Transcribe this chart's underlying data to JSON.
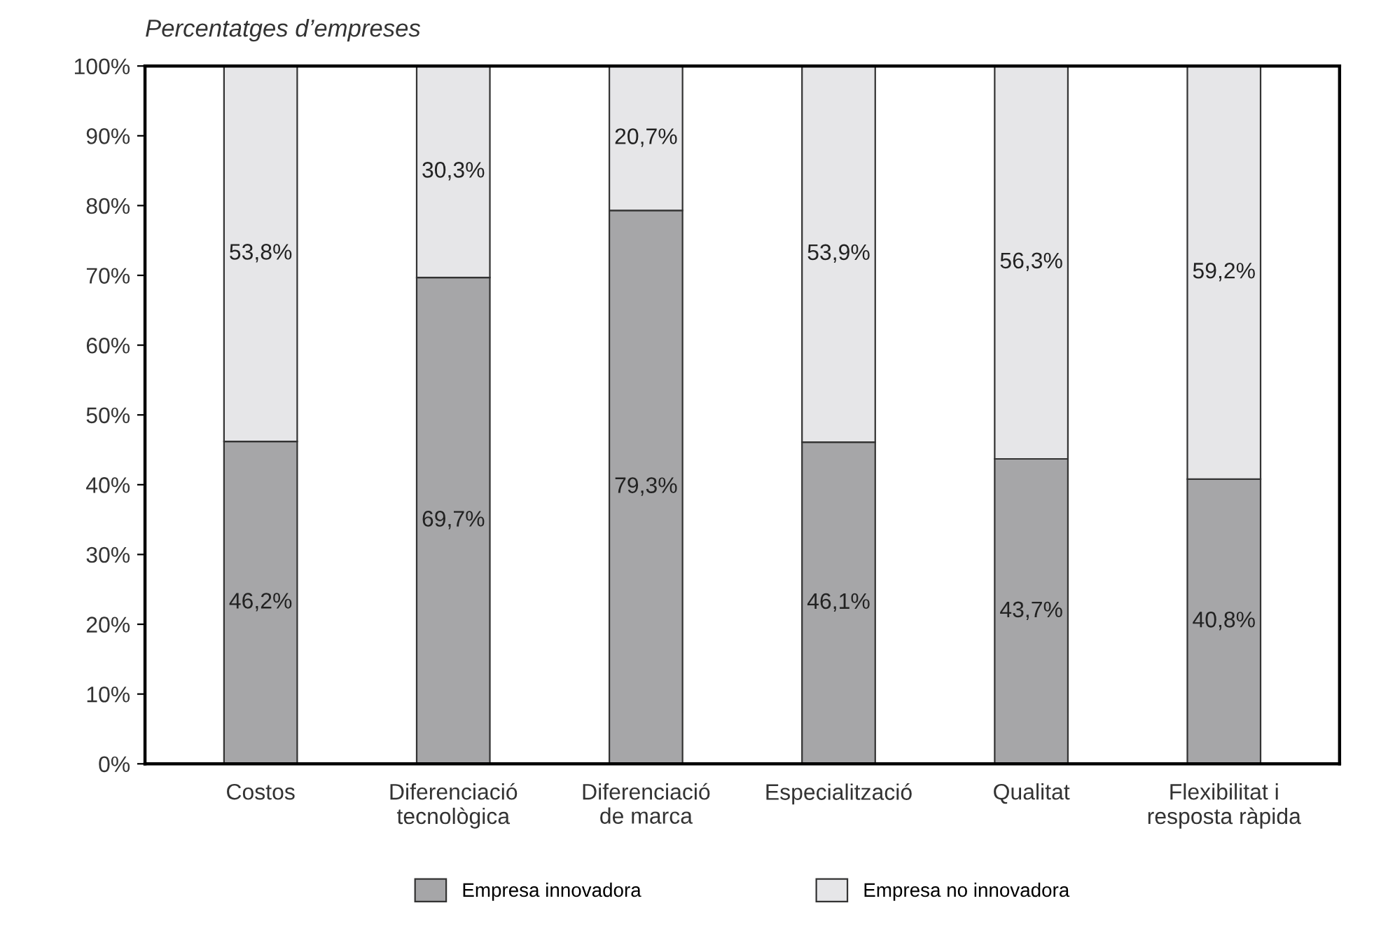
{
  "chart_data": {
    "type": "bar",
    "stacked": true,
    "ylabel": "Percentatges d’empreses",
    "categories": [
      "Costos",
      "Diferenciació\ntecnològica",
      "Diferenciació\nde marca",
      "Especialització",
      "Qualitat",
      "Flexibilitat i\nresposta ràpida"
    ],
    "series": [
      {
        "name": "Empresa innovadora",
        "color": "#a6a6a8",
        "values": [
          46.2,
          69.7,
          79.3,
          46.1,
          43.7,
          40.8
        ],
        "value_labels": [
          "46,2%",
          "69,7%",
          "79,3%",
          "46,1%",
          "43,7%",
          "40,8%"
        ]
      },
      {
        "name": "Empresa no innovadora",
        "color": "#e6e6e8",
        "values": [
          53.8,
          30.3,
          20.7,
          53.9,
          56.3,
          59.2
        ],
        "value_labels": [
          "53,8%",
          "30,3%",
          "20,7%",
          "53,9%",
          "56,3%",
          "59,2%"
        ]
      }
    ],
    "ylim": [
      0,
      100
    ],
    "yticks": [
      {
        "value": 0,
        "label": "0%"
      },
      {
        "value": 10,
        "label": "10%"
      },
      {
        "value": 20,
        "label": "20%"
      },
      {
        "value": 30,
        "label": "30%"
      },
      {
        "value": 40,
        "label": "40%"
      },
      {
        "value": 50,
        "label": "50%"
      },
      {
        "value": 60,
        "label": "60%"
      },
      {
        "value": 70,
        "label": "70%"
      },
      {
        "value": 80,
        "label": "80%"
      },
      {
        "value": 90,
        "label": "90%"
      },
      {
        "value": 100,
        "label": "100%"
      }
    ],
    "grid": false,
    "legend": "bottom"
  }
}
